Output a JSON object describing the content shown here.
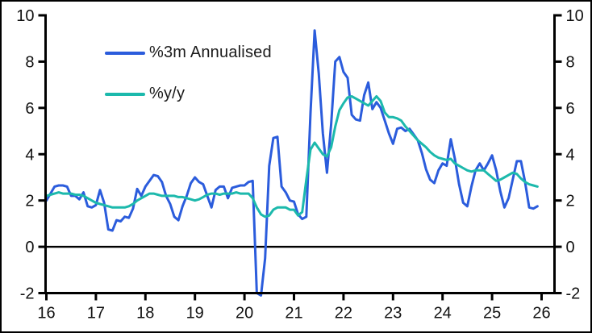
{
  "chart_data": {
    "type": "line",
    "title": "",
    "xlabel": "",
    "ylabel": "",
    "grid": false,
    "zero_line": true,
    "x_axis": {
      "ticks": [
        16,
        17,
        18,
        19,
        20,
        21,
        22,
        23,
        24,
        25,
        26
      ],
      "range": [
        16,
        26.3
      ]
    },
    "y_axis": {
      "ticks": [
        -2,
        0,
        2,
        4,
        6,
        8,
        10
      ],
      "range": [
        -2,
        10
      ],
      "mirrored_right": true
    },
    "legend": [
      {
        "label": "%3m Annualised",
        "color": "#2B5CDC"
      },
      {
        "label": "%y/y",
        "color": "#1CB9AC"
      }
    ],
    "axis_color": "#000000",
    "series": [
      {
        "name": "%3m Annualised",
        "color": "#2B5CDC",
        "frequency": "monthly",
        "start_x": 16.0,
        "values": [
          2.0,
          2.3,
          2.6,
          2.65,
          2.65,
          2.6,
          2.2,
          2.2,
          2.05,
          2.35,
          1.75,
          1.7,
          1.8,
          2.45,
          1.9,
          0.75,
          0.7,
          1.15,
          1.1,
          1.3,
          1.25,
          1.65,
          2.5,
          2.2,
          2.6,
          2.85,
          3.1,
          3.05,
          2.8,
          2.2,
          1.85,
          1.3,
          1.15,
          1.75,
          2.2,
          2.75,
          3.0,
          2.8,
          2.7,
          2.2,
          1.7,
          2.45,
          2.6,
          2.6,
          2.1,
          2.55,
          2.6,
          2.65,
          2.65,
          2.8,
          2.85,
          -2.0,
          -2.1,
          -0.5,
          3.5,
          4.7,
          4.75,
          2.6,
          2.35,
          2.0,
          1.95,
          1.4,
          1.2,
          1.3,
          5.8,
          9.35,
          7.5,
          4.9,
          3.2,
          5.3,
          8.0,
          8.2,
          7.55,
          7.3,
          5.7,
          5.5,
          5.45,
          6.55,
          7.1,
          5.95,
          6.25,
          6.0,
          5.45,
          4.9,
          4.45,
          5.1,
          5.15,
          5.0,
          5.1,
          4.85,
          4.6,
          4.05,
          3.35,
          2.9,
          2.75,
          3.3,
          3.6,
          3.5,
          4.65,
          3.8,
          2.7,
          1.9,
          1.75,
          2.6,
          3.3,
          3.6,
          3.3,
          3.6,
          3.95,
          3.3,
          2.4,
          1.7,
          2.1,
          2.9,
          3.7,
          3.7,
          2.8,
          1.7,
          1.65,
          1.75
        ]
      },
      {
        "name": "%y/y",
        "color": "#1CB9AC",
        "frequency": "monthly",
        "start_x": 16.0,
        "values": [
          2.2,
          2.25,
          2.3,
          2.35,
          2.3,
          2.3,
          2.3,
          2.25,
          2.25,
          2.2,
          2.1,
          2.0,
          1.9,
          1.85,
          1.8,
          1.75,
          1.7,
          1.7,
          1.7,
          1.7,
          1.75,
          1.85,
          2.0,
          2.1,
          2.2,
          2.3,
          2.3,
          2.25,
          2.2,
          2.2,
          2.2,
          2.2,
          2.15,
          2.15,
          2.1,
          2.05,
          2.0,
          2.05,
          2.15,
          2.25,
          2.3,
          2.3,
          2.25,
          2.3,
          2.3,
          2.3,
          2.35,
          2.3,
          2.3,
          2.3,
          2.1,
          1.7,
          1.4,
          1.3,
          1.35,
          1.6,
          1.7,
          1.7,
          1.7,
          1.6,
          1.6,
          1.35,
          1.5,
          2.9,
          4.2,
          4.5,
          4.25,
          4.0,
          3.9,
          4.3,
          5.2,
          5.9,
          6.2,
          6.45,
          6.5,
          6.4,
          6.3,
          6.2,
          6.1,
          6.3,
          6.5,
          6.3,
          5.8,
          5.6,
          5.6,
          5.55,
          5.45,
          5.2,
          5.0,
          4.8,
          4.6,
          4.45,
          4.3,
          4.1,
          3.95,
          3.85,
          3.8,
          3.75,
          3.8,
          3.6,
          3.5,
          3.4,
          3.3,
          3.25,
          3.3,
          3.3,
          3.3,
          3.15,
          3.0,
          2.85,
          2.9,
          3.0,
          3.1,
          3.2,
          3.15,
          2.95,
          2.8,
          2.7,
          2.65,
          2.6
        ]
      }
    ]
  }
}
